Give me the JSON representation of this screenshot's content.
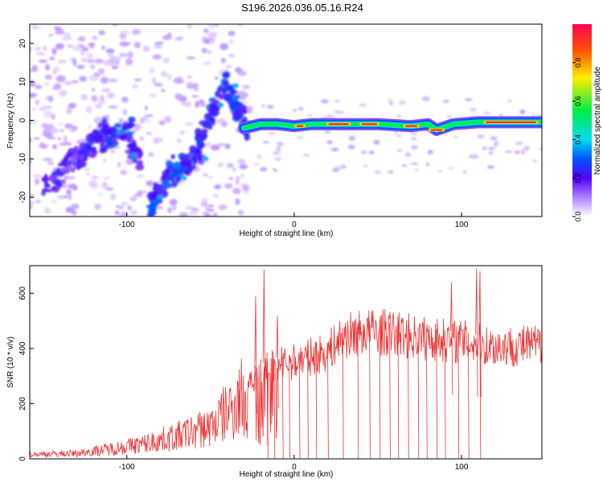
{
  "title": "S196.2026.036.05.16.R24",
  "chart_data": [
    {
      "type": "heatmap",
      "xlabel": "Height of straight line (km)",
      "ylabel": "Frequency (Hz)",
      "xlim": [
        -158,
        148
      ],
      "ylim": [
        -25,
        25
      ],
      "xticks": [
        -100,
        0,
        100
      ],
      "yticks": [
        20,
        10,
        0,
        -10,
        -20
      ],
      "colorbar": {
        "label": "Normalized spectral amplitude",
        "range": [
          0,
          1
        ],
        "ticks": [
          "0.0",
          "0.2",
          "0.4",
          "0.6",
          "0.8"
        ]
      },
      "ridge": [
        {
          "x": -30,
          "y": -2
        },
        {
          "x": -20,
          "y": -1
        },
        {
          "x": -10,
          "y": -1
        },
        {
          "x": 0,
          "y": -1.5
        },
        {
          "x": 10,
          "y": -1
        },
        {
          "x": 30,
          "y": -1
        },
        {
          "x": 50,
          "y": -1
        },
        {
          "x": 70,
          "y": -1.5
        },
        {
          "x": 80,
          "y": -1
        },
        {
          "x": 85,
          "y": -2.5
        },
        {
          "x": 95,
          "y": -1
        },
        {
          "x": 110,
          "y": -0.5
        },
        {
          "x": 130,
          "y": -0.5
        },
        {
          "x": 148,
          "y": -0.5
        }
      ],
      "hot_segments": [
        {
          "x0": 1,
          "x1": 6,
          "y": -1.5
        },
        {
          "x0": 20,
          "x1": 33,
          "y": -1
        },
        {
          "x0": 40,
          "x1": 50,
          "y": -1
        },
        {
          "x0": 66,
          "x1": 74,
          "y": -1.5
        },
        {
          "x0": 81,
          "x1": 89,
          "y": -2.5
        },
        {
          "x0": 114,
          "x1": 145,
          "y": -0.5
        }
      ]
    },
    {
      "type": "line",
      "xlabel": "Height of straight line (km)",
      "ylabel": "SNR (10 * v/v)",
      "xlim": [
        -158,
        148
      ],
      "ylim": [
        0,
        700
      ],
      "xticks": [
        -100,
        0,
        100
      ],
      "yticks": [
        0,
        200,
        400,
        600
      ],
      "series": [
        {
          "name": "SNR",
          "color": "#ee3333",
          "envelope": [
            {
              "x": -158,
              "y": 18
            },
            {
              "x": -130,
              "y": 22
            },
            {
              "x": -110,
              "y": 40
            },
            {
              "x": -90,
              "y": 60
            },
            {
              "x": -70,
              "y": 90
            },
            {
              "x": -50,
              "y": 130
            },
            {
              "x": -35,
              "y": 220
            },
            {
              "x": -25,
              "y": 320
            },
            {
              "x": -15,
              "y": 360
            },
            {
              "x": 0,
              "y": 380
            },
            {
              "x": 10,
              "y": 400
            },
            {
              "x": 20,
              "y": 420
            },
            {
              "x": 30,
              "y": 480
            },
            {
              "x": 45,
              "y": 500
            },
            {
              "x": 60,
              "y": 490
            },
            {
              "x": 80,
              "y": 470
            },
            {
              "x": 100,
              "y": 460
            },
            {
              "x": 120,
              "y": 440
            },
            {
              "x": 148,
              "y": 445
            }
          ],
          "dropouts": [
            -16,
            -12,
            -7,
            -3,
            3,
            8,
            13,
            20,
            29,
            38,
            45,
            51,
            57,
            62,
            68,
            74,
            79,
            85,
            90,
            98,
            104,
            111
          ],
          "spikes": [
            {
              "x": -18,
              "y": 685
            },
            {
              "x": -23,
              "y": 590
            },
            {
              "x": -10,
              "y": 520
            },
            {
              "x": 94,
              "y": 640
            },
            {
              "x": 109,
              "y": 690
            },
            {
              "x": 111,
              "y": 680
            }
          ]
        }
      ]
    }
  ]
}
